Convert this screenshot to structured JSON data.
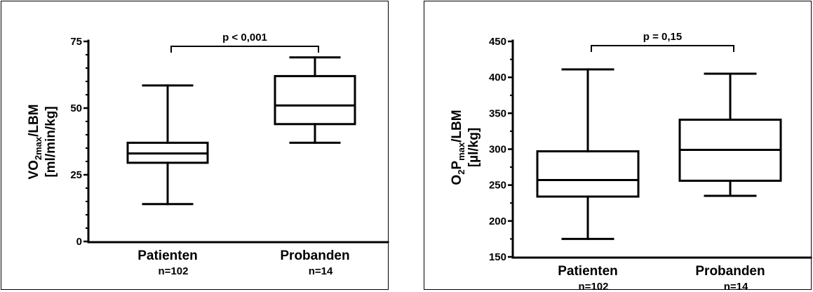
{
  "chart_data": [
    {
      "type": "boxplot",
      "ylabel": {
        "line1": {
          "main": "VO",
          "sub": "2max",
          "rest": "/LBM"
        },
        "line2": "[ml/min/kg]"
      },
      "ylim": [
        0,
        75
      ],
      "yticks": [
        0,
        25,
        50,
        75
      ],
      "ytick_labels": [
        "0",
        "25",
        "50",
        "75"
      ],
      "categories": [
        "Patienten",
        "Probanden"
      ],
      "n_labels": [
        "n=102",
        "n=14"
      ],
      "boxes": [
        {
          "min": 14,
          "q1": 29.5,
          "median": 33,
          "q3": 37,
          "max": 58.5
        },
        {
          "min": 37,
          "q1": 44,
          "median": 51,
          "q3": 62,
          "max": 69
        }
      ],
      "significance": "p < 0,001"
    },
    {
      "type": "boxplot",
      "ylabel": {
        "line1": {
          "parts": [
            {
              "t": "O"
            },
            {
              "t": "2",
              "sub": true
            },
            {
              "t": "P"
            },
            {
              "t": "max",
              "sub": true
            },
            {
              "t": "/LBM"
            }
          ]
        },
        "line2": "[µl/kg]"
      },
      "ylim": [
        150,
        450
      ],
      "yticks": [
        150,
        200,
        250,
        300,
        350,
        400,
        450
      ],
      "ytick_labels": [
        "150",
        "200",
        "250",
        "300",
        "350",
        "400",
        "450"
      ],
      "categories": [
        "Patienten",
        "Probanden"
      ],
      "n_labels": [
        "n=102",
        "n=14"
      ],
      "boxes": [
        {
          "min": 175,
          "q1": 234,
          "median": 257,
          "q3": 297,
          "max": 411
        },
        {
          "min": 235,
          "q1": 256,
          "median": 299,
          "q3": 341,
          "max": 405
        }
      ],
      "significance": "p = 0,15"
    }
  ]
}
